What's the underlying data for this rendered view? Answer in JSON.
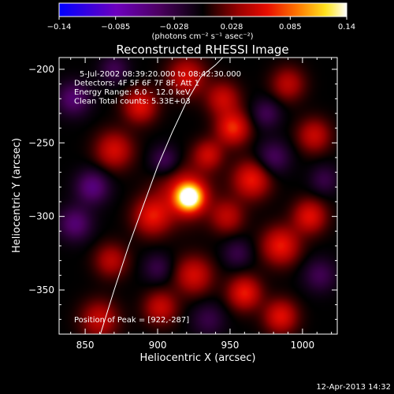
{
  "chart_data": {
    "type": "heatmap",
    "title": "Reconstructed RHESSI Image",
    "xlabel": "Heliocentric X (arcsec)",
    "ylabel": "Heliocentric Y (arcsec)",
    "xlim": [
      832,
      1024
    ],
    "ylim": [
      -380,
      -192
    ],
    "xticks": [
      850,
      900,
      950,
      1000
    ],
    "xtick_labels": [
      "850",
      "900",
      "950",
      "1000"
    ],
    "yticks": [
      -200,
      -250,
      -300,
      -350
    ],
    "ytick_labels": [
      "−200",
      "−250",
      "−300",
      "−350"
    ],
    "colorbar": {
      "range": [
        -0.14,
        0.14
      ],
      "ticks": [
        -0.14,
        -0.085,
        -0.028,
        0.028,
        0.085,
        0.14
      ],
      "tick_labels": [
        "−0.14",
        "−0.085",
        "−0.028",
        "0.028",
        "0.085",
        "0.14"
      ],
      "unit_label": "(photons cm⁻² s⁻¹ asec⁻²)"
    },
    "info_lines": [
      "5‑Jul‑2002 08:39:20.000 to 08:42:30.000",
      "Detectors: 4F 5F 6F 7F 8F, Att 1",
      "Energy Range: 6.0 – 12.0 keV",
      "Clean     Total counts: 5.33E+03"
    ],
    "peak_label": "Position of Peak = [922,‑287]",
    "peak": [
      922,
      -287
    ],
    "peak_value": 0.14,
    "sources": [
      {
        "x": 922,
        "y": -287,
        "sigma": 6.5,
        "amp": 0.14
      },
      {
        "x": 918,
        "y": -284,
        "sigma": 13,
        "amp": 0.05
      },
      {
        "x": 896,
        "y": -300,
        "sigma": 9,
        "amp": 0.06
      },
      {
        "x": 870,
        "y": -255,
        "sigma": 9,
        "amp": 0.055
      },
      {
        "x": 888,
        "y": -225,
        "sigma": 8,
        "amp": 0.06
      },
      {
        "x": 920,
        "y": -205,
        "sigma": 9,
        "amp": 0.055
      },
      {
        "x": 945,
        "y": -220,
        "sigma": 8,
        "amp": 0.05
      },
      {
        "x": 952,
        "y": -240,
        "sigma": 8,
        "amp": 0.07
      },
      {
        "x": 935,
        "y": -258,
        "sigma": 7,
        "amp": 0.05
      },
      {
        "x": 965,
        "y": -275,
        "sigma": 9,
        "amp": 0.065
      },
      {
        "x": 948,
        "y": -300,
        "sigma": 8,
        "amp": 0.045
      },
      {
        "x": 985,
        "y": -320,
        "sigma": 9,
        "amp": 0.065
      },
      {
        "x": 1005,
        "y": -300,
        "sigma": 8,
        "amp": 0.06
      },
      {
        "x": 1008,
        "y": -245,
        "sigma": 8,
        "amp": 0.05
      },
      {
        "x": 990,
        "y": -210,
        "sigma": 8,
        "amp": 0.045
      },
      {
        "x": 960,
        "y": -352,
        "sigma": 8,
        "amp": 0.065
      },
      {
        "x": 985,
        "y": -368,
        "sigma": 8,
        "amp": 0.06
      },
      {
        "x": 925,
        "y": -340,
        "sigma": 9,
        "amp": 0.055
      },
      {
        "x": 902,
        "y": -362,
        "sigma": 8,
        "amp": 0.05
      },
      {
        "x": 868,
        "y": -330,
        "sigma": 8,
        "amp": 0.045
      },
      {
        "x": 860,
        "y": -370,
        "sigma": 9,
        "amp": 0.05
      },
      {
        "x": 842,
        "y": -220,
        "sigma": 8,
        "amp": -0.05
      },
      {
        "x": 855,
        "y": -280,
        "sigma": 8,
        "amp": -0.055
      },
      {
        "x": 843,
        "y": -305,
        "sigma": 8,
        "amp": -0.05
      },
      {
        "x": 905,
        "y": -262,
        "sigma": 7,
        "amp": -0.04
      },
      {
        "x": 980,
        "y": -260,
        "sigma": 8,
        "amp": -0.04
      },
      {
        "x": 975,
        "y": -230,
        "sigma": 7,
        "amp": -0.035
      },
      {
        "x": 1015,
        "y": -275,
        "sigma": 7,
        "amp": -0.03
      },
      {
        "x": 1012,
        "y": -340,
        "sigma": 8,
        "amp": -0.035
      },
      {
        "x": 935,
        "y": -370,
        "sigma": 8,
        "amp": -0.03
      },
      {
        "x": 955,
        "y": -325,
        "sigma": 7,
        "amp": -0.03
      },
      {
        "x": 900,
        "y": -335,
        "sigma": 7,
        "amp": -0.03
      },
      {
        "x": 870,
        "y": -200,
        "sigma": 7,
        "amp": -0.035
      }
    ],
    "limb_line": {
      "x": [
        860.5,
        870,
        880,
        890,
        900,
        910,
        920,
        930,
        940,
        945
      ],
      "y": [
        -380,
        -350,
        -320,
        -293,
        -266,
        -243,
        -222,
        -205,
        -197,
        -192
      ]
    }
  },
  "timestamp": "12‑Apr‑2013 14:32"
}
